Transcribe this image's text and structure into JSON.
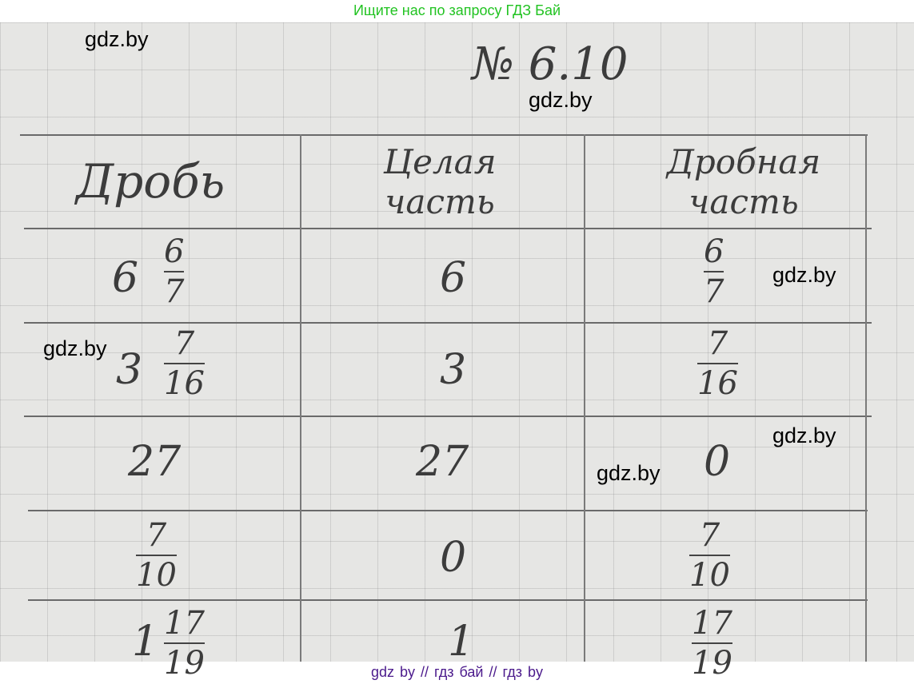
{
  "top_banner": "Ищите нас по запросу ГДЗ Бай",
  "bottom_banner": "gdz by  //  гдз бай  //  гдз by",
  "problem_number": "№ 6.10",
  "watermark": "gdz.by",
  "table": {
    "headers": [
      "Дробь",
      "Целая часть",
      "Дробная часть"
    ],
    "rows": [
      {
        "fraction": {
          "whole": "6",
          "num": "6",
          "den": "7"
        },
        "integer_part": "6",
        "fractional_part": {
          "num": "6",
          "den": "7"
        }
      },
      {
        "fraction": {
          "whole": "3",
          "num": "7",
          "den": "16"
        },
        "integer_part": "3",
        "fractional_part": {
          "num": "7",
          "den": "16"
        }
      },
      {
        "fraction": {
          "whole": "27"
        },
        "integer_part": "27",
        "fractional_part": {
          "value": "0"
        }
      },
      {
        "fraction": {
          "num": "7",
          "den": "10"
        },
        "integer_part": "0",
        "fractional_part": {
          "num": "7",
          "den": "10"
        }
      },
      {
        "fraction": {
          "whole": "1",
          "num": "17",
          "den": "19"
        },
        "integer_part": "1",
        "fractional_part": {
          "num": "17",
          "den": "19"
        }
      }
    ]
  },
  "colors": {
    "top_banner": "#22c322",
    "bottom_banner": "#4b1a8c"
  }
}
